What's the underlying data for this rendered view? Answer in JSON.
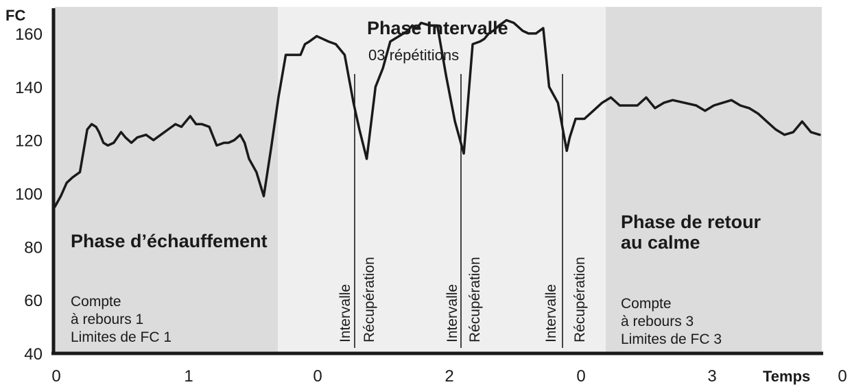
{
  "chart_data": {
    "type": "line",
    "title": "",
    "ylabel": "FC",
    "xlabel": "Temps",
    "ylim": [
      40,
      170
    ],
    "yticks": [
      40,
      60,
      80,
      100,
      120,
      140,
      160
    ],
    "xtick_labels": [
      "0",
      "1",
      "0",
      "2",
      "0",
      "3",
      "0"
    ],
    "grid": false,
    "colors": {
      "warmup_band": "#dcdcdc",
      "interval_band": "#efefef",
      "cooldown_band": "#dcdcdc",
      "line": "#1a1a1a"
    },
    "phases": {
      "warmup": {
        "title": "Phase d’échauffement",
        "notes": [
          "Compte",
          "à rebours 1",
          "Limites de FC 1"
        ]
      },
      "interval": {
        "title": "Phase Intervalle",
        "subtitle": "03 répétitions",
        "interval_label": "Intervalle",
        "recovery_label": "Récupération"
      },
      "cooldown": {
        "title_lines": [
          "Phase de retour",
          "au calme"
        ],
        "notes": [
          "Compte",
          "à rebours 3",
          "Limites de FC 3"
        ]
      }
    },
    "x": [
      0,
      4,
      8,
      12,
      17,
      22,
      25,
      28,
      30,
      33,
      36,
      40,
      45,
      48,
      52,
      56,
      62,
      67,
      72,
      77,
      82,
      86,
      92,
      96,
      100,
      105,
      110,
      115,
      118,
      122,
      126,
      129,
      132,
      137,
      142,
      147,
      152,
      157,
      162,
      167,
      170,
      173,
      178,
      182,
      186,
      191,
      197,
      203,
      207,
      212,
      218,
      223,
      228,
      234,
      240,
      243,
      246,
      249,
      255,
      260,
      266,
      272,
      278,
      284,
      289,
      292,
      295,
      298,
      302,
      307,
      312,
      318,
      322,
      327,
      332,
      336,
      342,
      348,
      350,
      354,
      360,
      366,
      372,
      378,
      384,
      390,
      396,
      402,
      408,
      414,
      420,
      428,
      436,
      442,
      448,
      454,
      460,
      466,
      472,
      478,
      484,
      490,
      496,
      502,
      508,
      514,
      520
    ],
    "values": [
      95,
      99,
      104,
      106,
      108,
      124,
      126,
      125,
      123,
      119,
      118,
      119,
      123,
      121,
      119,
      121,
      122,
      120,
      122,
      124,
      126,
      125,
      129,
      126,
      126,
      125,
      118,
      119,
      119,
      120,
      122,
      119,
      113,
      108,
      99,
      117,
      136,
      152,
      152,
      152,
      156,
      157,
      159,
      158,
      157,
      156,
      152,
      134,
      124,
      113,
      140,
      147,
      157,
      159,
      161,
      163,
      162,
      164,
      163,
      163,
      144,
      127,
      115,
      156,
      157,
      158,
      160,
      161,
      163,
      165,
      164,
      161,
      160,
      160,
      162,
      140,
      134,
      116,
      121,
      128,
      128,
      131,
      134,
      136,
      133,
      133,
      133,
      136,
      132,
      134,
      135,
      134,
      133,
      131,
      133,
      134,
      135,
      133,
      132,
      130,
      127,
      124,
      122,
      123,
      127,
      123,
      122
    ]
  }
}
